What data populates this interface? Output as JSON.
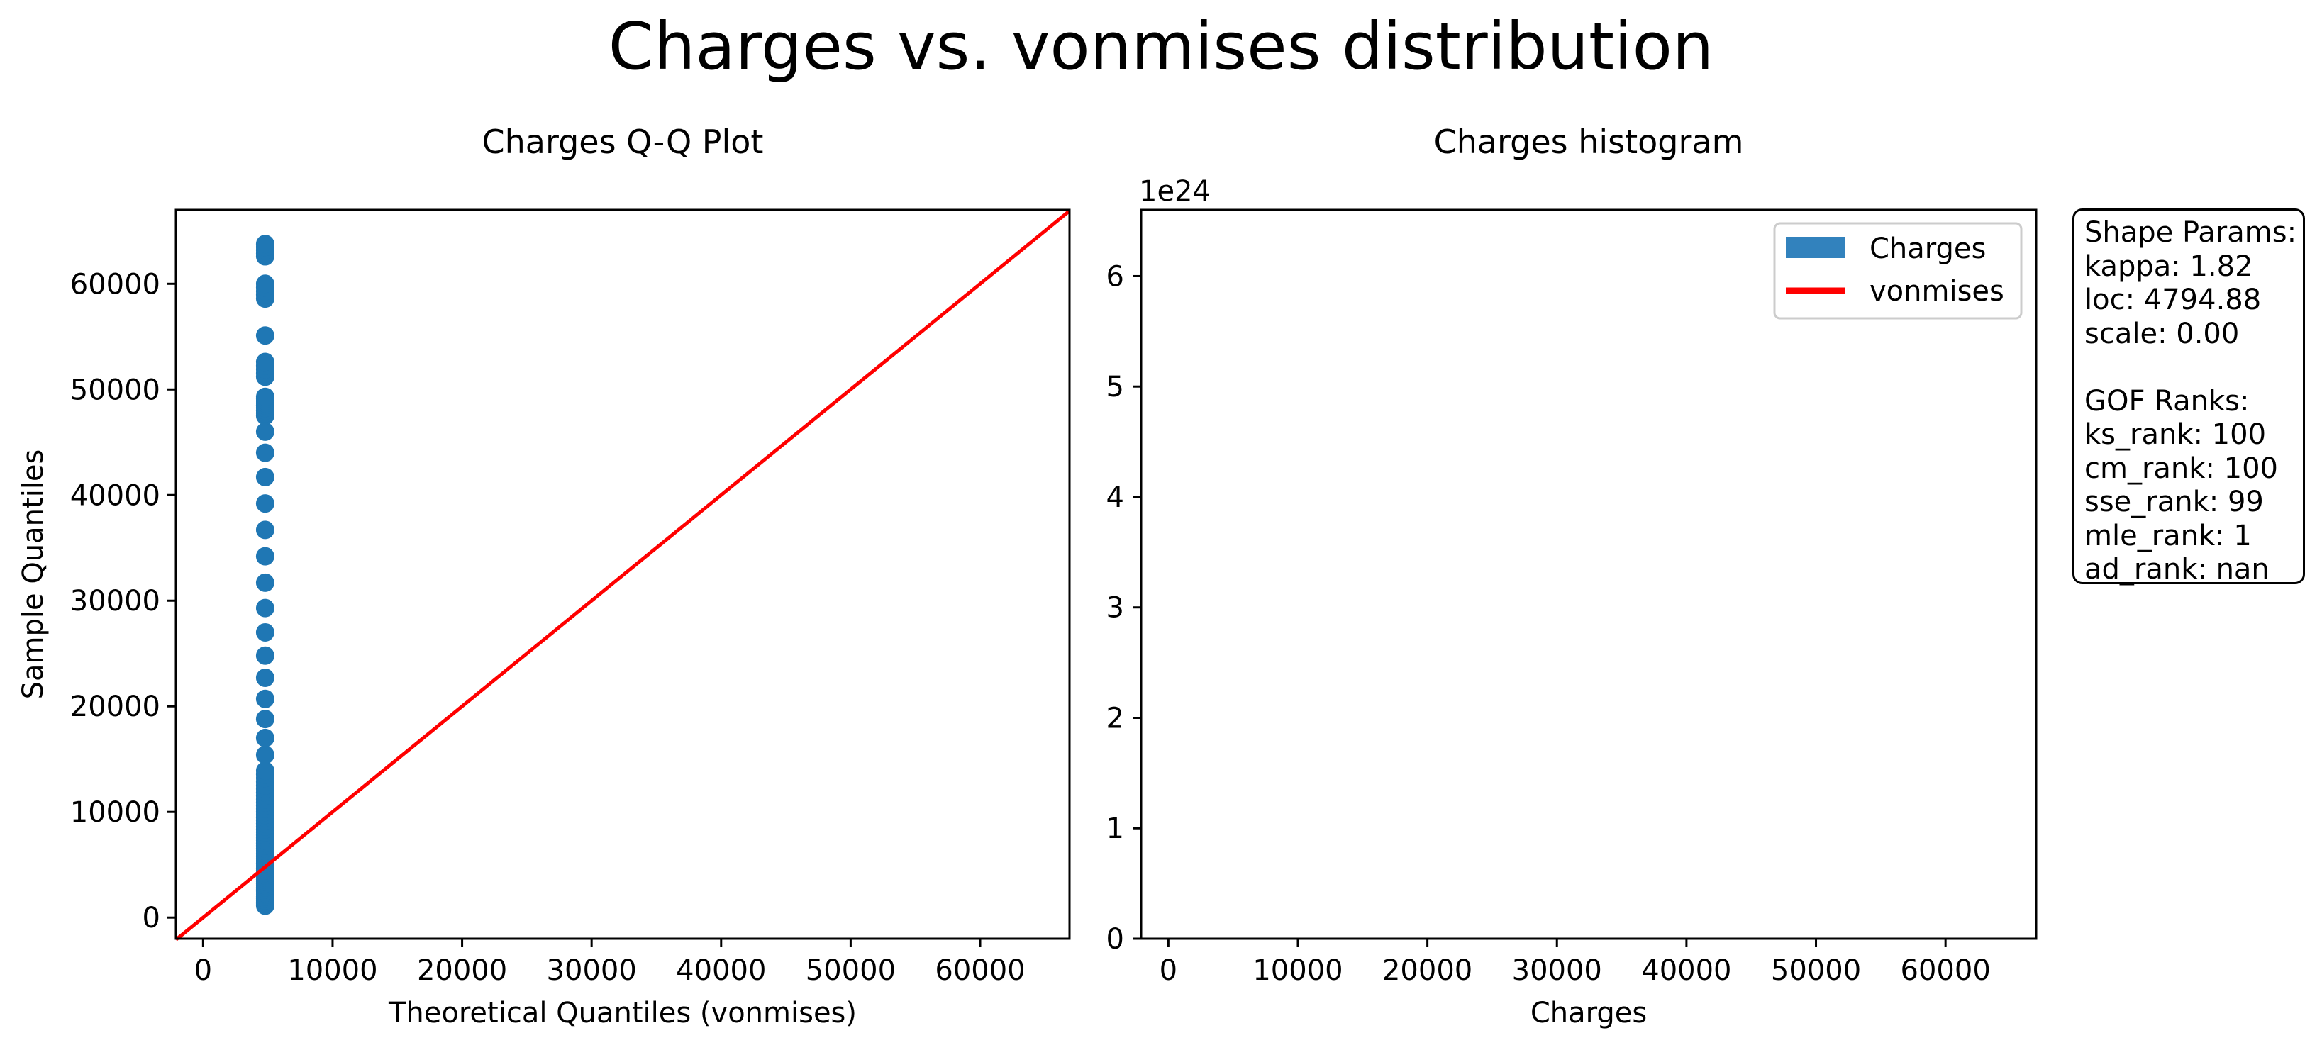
{
  "figure": {
    "title": "Charges vs. vonmises distribution"
  },
  "stats_box": {
    "lines": [
      "Shape Params:",
      "kappa: 1.82",
      "loc: 4794.88",
      "scale: 0.00",
      "",
      "GOF Ranks:",
      "ks_rank: 100",
      "cm_rank: 100",
      "sse_rank: 99",
      "mle_rank: 1",
      "ad_rank: nan"
    ]
  },
  "colors": {
    "points": "#1f77b4",
    "reference_line": "#ff0000",
    "histogram_bar": "#3282bd",
    "fit_line": "#ff0000"
  },
  "chart_data": [
    {
      "type": "scatter",
      "title": "Charges Q-Q Plot",
      "xlabel": "Theoretical Quantiles (vonmises)",
      "ylabel": "Sample Quantiles",
      "xlim": [
        -2100,
        66900
      ],
      "ylim": [
        -2000,
        67000
      ],
      "xticks": [
        0,
        10000,
        20000,
        30000,
        40000,
        50000,
        60000
      ],
      "yticks": [
        0,
        10000,
        20000,
        30000,
        40000,
        50000,
        60000
      ],
      "reference_line": {
        "x": [
          -2100,
          66900
        ],
        "y": [
          -2100,
          66900
        ]
      },
      "series": [
        {
          "x_theoretical": 4795,
          "sample_quantiles": [
            1122,
            1800,
            2500,
            3200,
            4000,
            4900,
            5800,
            6800,
            7800,
            8900,
            10000,
            11200,
            12500,
            13900,
            15400,
            17000,
            18800,
            20700,
            22700,
            24800,
            27000,
            29300,
            31700,
            34200,
            36700,
            39200,
            41700,
            44000,
            46000,
            47500,
            48500,
            49300,
            51200,
            52600,
            55100,
            58600,
            60000,
            62600,
            63770
          ]
        }
      ]
    },
    {
      "type": "bar",
      "title": "Charges histogram",
      "xlabel": "Charges",
      "ylabel": "",
      "offset_label": "1e24",
      "xlim": [
        -2100,
        67000
      ],
      "ylim": [
        0,
        6.6
      ],
      "xticks": [
        0,
        10000,
        20000,
        30000,
        40000,
        50000,
        60000
      ],
      "yticks": [
        0,
        1,
        2,
        3,
        4,
        5,
        6
      ],
      "legend": {
        "position": "upper right",
        "entries": [
          "Charges",
          "vonmises"
        ]
      }
    }
  ]
}
